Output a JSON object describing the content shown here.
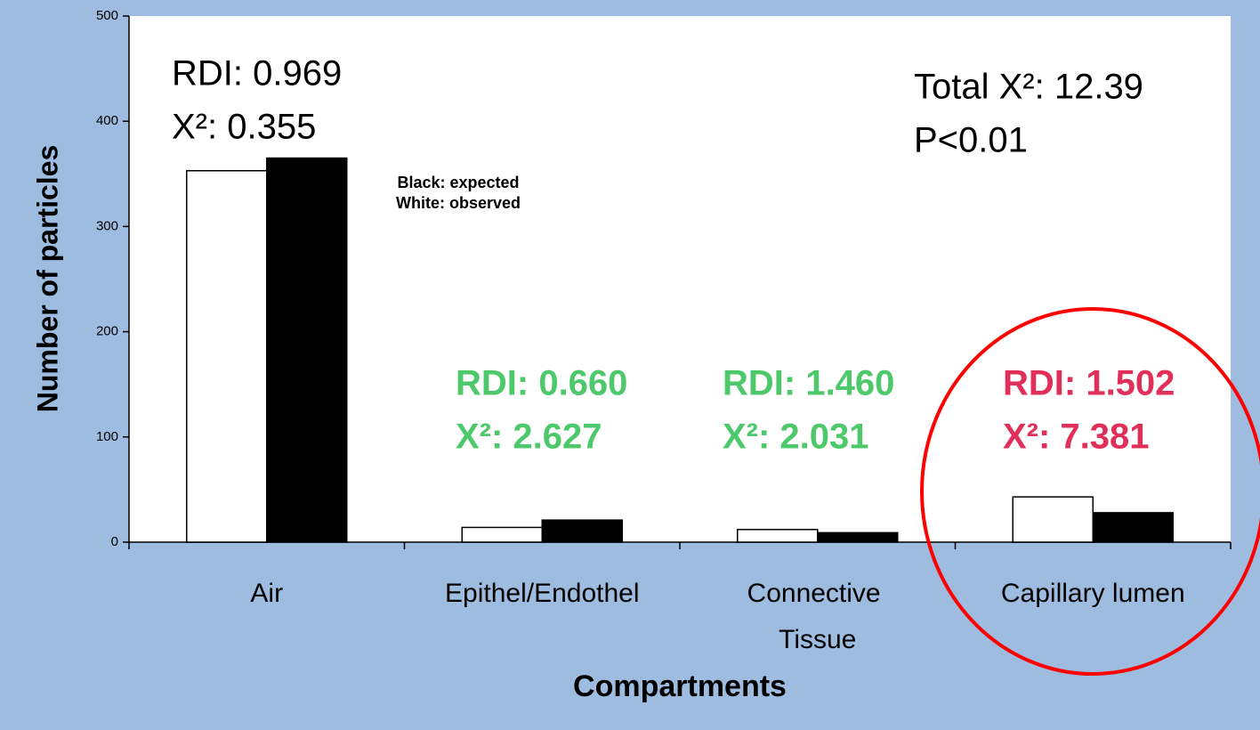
{
  "chart_data": {
    "type": "bar",
    "x_label": "Compartments",
    "y_label": "Number of particles",
    "categories": [
      "Air",
      "Epithel/Endothel",
      "Connective Tissue",
      "Capillary lumen"
    ],
    "series": [
      {
        "color": "#ffffff",
        "values": [
          353,
          14,
          12,
          43
        ]
      },
      {
        "color": "#000000",
        "values": [
          365,
          21,
          9,
          28
        ]
      }
    ],
    "ylim": [
      0,
      500
    ],
    "yticks": [
      0,
      100,
      200,
      300,
      400,
      500
    ],
    "legend_text": [
      "Black: expected",
      "White: observed"
    ],
    "annotations": [
      {
        "lines": [
          "RDI: 0.969",
          "X²: 0.355"
        ],
        "color": "#000000"
      },
      {
        "lines": [
          "RDI: 0.660",
          "X²: 2.627"
        ],
        "color": "#4dc86a"
      },
      {
        "lines": [
          "RDI: 1.460",
          "X²: 2.031"
        ],
        "color": "#4dc86a"
      },
      {
        "lines": [
          "RDI: 1.502",
          "X²: 7.381"
        ],
        "color": "#e0305a"
      },
      {
        "lines": [
          "Total X²: 12.39",
          "P<0.01"
        ],
        "color": "#000000"
      }
    ]
  }
}
